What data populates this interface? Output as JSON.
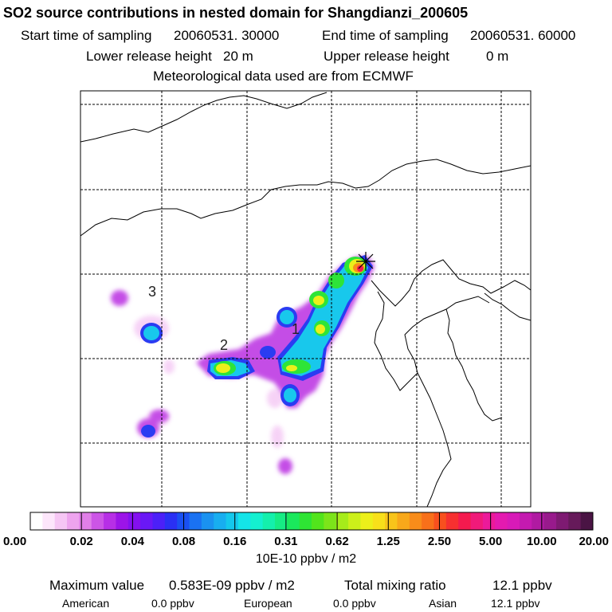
{
  "header": {
    "title": "SO2 source contributions in nested domain for Shangdianzi_200605",
    "start_label": "Start time of sampling",
    "start_value": "20060531. 30000",
    "end_label": "End time of sampling",
    "end_value": "20060531. 60000",
    "lower_label": "Lower release height",
    "lower_value": "20 m",
    "upper_label": "Upper release height",
    "upper_value": "0 m",
    "met_line": "Meteorological data used are from ECMWF"
  },
  "map": {
    "region_labels": [
      "1",
      "2",
      "3"
    ],
    "station_marker": "star-cross-icon"
  },
  "colorbar": {
    "tick_labels": [
      "0.00",
      "0.02",
      "0.04",
      "0.08",
      "0.16",
      "0.31",
      "0.62",
      "1.25",
      "2.50",
      "5.00",
      "10.00",
      "20.00"
    ],
    "units": "10E-10 ppbv / m2",
    "colors": [
      "#ffffff",
      "#fde6fb",
      "#f6c6f4",
      "#eea4ee",
      "#e07fe8",
      "#cc55e6",
      "#b72fe6",
      "#9c14e8",
      "#8410f0",
      "#6a18f6",
      "#4c20f8",
      "#2a30f4",
      "#1a50f2",
      "#1a72f2",
      "#1a92f0",
      "#18aef0",
      "#14c8ec",
      "#14e4e8",
      "#14f0d0",
      "#14f0ac",
      "#16ec84",
      "#1ae85c",
      "#2ee434",
      "#52e41c",
      "#7ce41a",
      "#a6ec1a",
      "#ccf01a",
      "#ecf01a",
      "#f8e01a",
      "#f8c41a",
      "#f8a81a",
      "#f88c1a",
      "#f8701a",
      "#f8501e",
      "#f63030",
      "#f41a4e",
      "#f01a7a",
      "#ec1a9a",
      "#e41ab0",
      "#d81ab8",
      "#c41ab0",
      "#b01aa2",
      "#981a8c",
      "#7e1a72",
      "#661a5a",
      "#4a1444"
    ]
  },
  "footer": {
    "max_label": "Maximum value",
    "max_value": "0.583E-09 ppbv / m2",
    "total_label": "Total mixing ratio",
    "total_value": "12.1 ppbv",
    "american_label": "American",
    "american_value": "0.0 ppbv",
    "european_label": "European",
    "european_value": "0.0 ppbv",
    "asian_label": "Asian",
    "asian_value": "12.1 ppbv"
  }
}
